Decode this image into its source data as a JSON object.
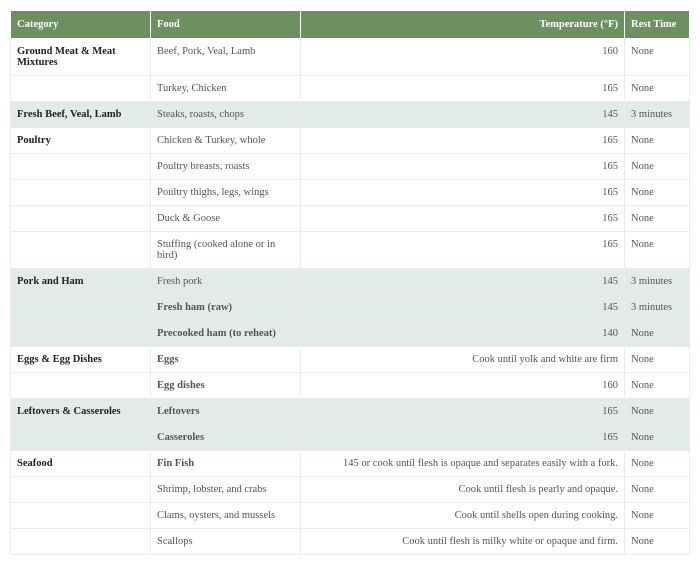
{
  "table": {
    "header_bg": "#6d9060",
    "header_fg": "#ffffff",
    "shade_bg": "#e3ebe6",
    "border_color": "#e8edea",
    "columns": [
      {
        "key": "category",
        "label": "Category",
        "align": "left"
      },
      {
        "key": "food",
        "label": "Food",
        "align": "left"
      },
      {
        "key": "temp",
        "label": "Temperature (°F)",
        "align": "right"
      },
      {
        "key": "rest",
        "label": "Rest Time",
        "align": "left"
      }
    ],
    "rows": [
      {
        "category": "Ground Meat & Meat Mixtures",
        "food": "Beef, Pork, Veal, Lamb",
        "temp": "160",
        "rest": "None",
        "shaded": false,
        "bold_food": false
      },
      {
        "category": "",
        "food": "Turkey, Chicken",
        "temp": "165",
        "rest": "None",
        "shaded": false,
        "bold_food": false
      },
      {
        "category": "Fresh Beef, Veal, Lamb",
        "food": "Steaks, roasts, chops",
        "temp": "145",
        "rest": "3 minutes",
        "shaded": true,
        "bold_food": false
      },
      {
        "category": "Poultry",
        "food": "Chicken & Turkey, whole",
        "temp": "165",
        "rest": "None",
        "shaded": false,
        "bold_food": false
      },
      {
        "category": "",
        "food": "Poultry breasts, roasts",
        "temp": "165",
        "rest": "None",
        "shaded": false,
        "bold_food": false
      },
      {
        "category": "",
        "food": "Poultry thighs, legs, wings",
        "temp": "165",
        "rest": "None",
        "shaded": false,
        "bold_food": false
      },
      {
        "category": "",
        "food": "Duck & Goose",
        "temp": "165",
        "rest": "None",
        "shaded": false,
        "bold_food": false
      },
      {
        "category": "",
        "food": "Stuffing (cooked alone or in bird)",
        "temp": "165",
        "rest": "None",
        "shaded": false,
        "bold_food": false
      },
      {
        "category": "Pork and Ham",
        "food": "Fresh pork",
        "temp": "145",
        "rest": "3 minutes",
        "shaded": true,
        "bold_food": false
      },
      {
        "category": "",
        "food": "Fresh ham (raw)",
        "temp": "145",
        "rest": "3 minutes",
        "shaded": true,
        "bold_food": true
      },
      {
        "category": "",
        "food": "Precooked ham (to reheat)",
        "temp": "140",
        "rest": "None",
        "shaded": true,
        "bold_food": true
      },
      {
        "category": "Eggs & Egg Dishes",
        "food": "Eggs",
        "temp": "Cook until yolk and white are firm",
        "rest": "None",
        "shaded": false,
        "bold_food": true
      },
      {
        "category": "",
        "food": "Egg dishes",
        "temp": "160",
        "rest": "None",
        "shaded": false,
        "bold_food": true
      },
      {
        "category": "Leftovers & Casseroles",
        "food": "Leftovers",
        "temp": "165",
        "rest": "None",
        "shaded": true,
        "bold_food": true
      },
      {
        "category": "",
        "food": "Casseroles",
        "temp": "165",
        "rest": "None",
        "shaded": true,
        "bold_food": true
      },
      {
        "category": "Seafood",
        "food": "Fin Fish",
        "temp": "145 or cook until flesh is opaque and separates easily with a fork.",
        "rest": "None",
        "shaded": false,
        "bold_food": true
      },
      {
        "category": "",
        "food": "Shrimp, lobster, and crabs",
        "temp": "Cook until flesh is pearly and opaque.",
        "rest": "None",
        "shaded": false,
        "bold_food": false
      },
      {
        "category": "",
        "food": "Clams, oysters, and mussels",
        "temp": "Cook until shells open during cooking.",
        "rest": "None",
        "shaded": false,
        "bold_food": false
      },
      {
        "category": "",
        "food": "Scallops",
        "temp": "Cook until flesh is milky white or opaque and firm.",
        "rest": "None",
        "shaded": false,
        "bold_food": false
      }
    ]
  }
}
